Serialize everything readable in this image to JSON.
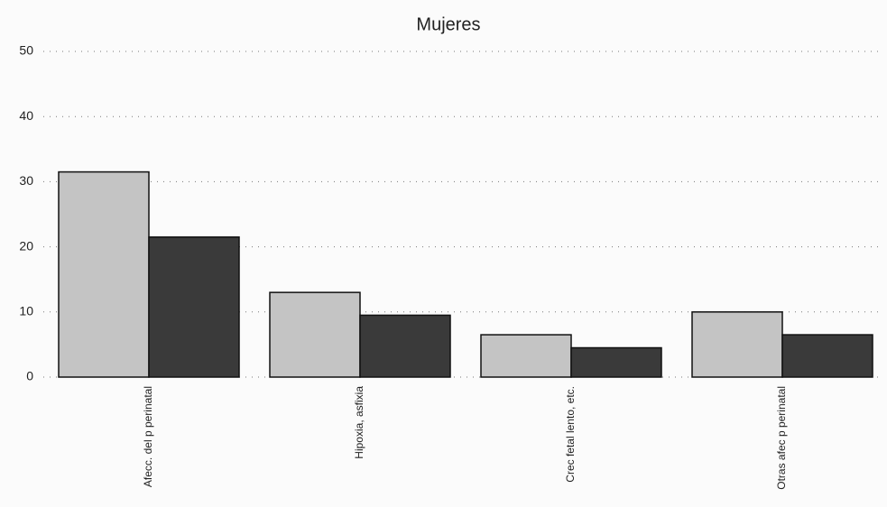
{
  "chart_data": {
    "type": "bar",
    "title": "Mujeres",
    "categories": [
      "Afecc. del p perinatal",
      "Hipoxia, asfixia",
      "Crec fetal lento, etc.",
      "Otras afec p perinatal"
    ],
    "series": [
      {
        "color": "#c4c4c4",
        "values": [
          31.5,
          13,
          6.5,
          10
        ]
      },
      {
        "color": "#3a3a3a",
        "values": [
          21.5,
          9.5,
          4.5,
          6.5
        ]
      }
    ],
    "ylim": [
      0,
      50
    ],
    "yticks": [
      0,
      10,
      20,
      30,
      40,
      50
    ],
    "grid": true
  }
}
